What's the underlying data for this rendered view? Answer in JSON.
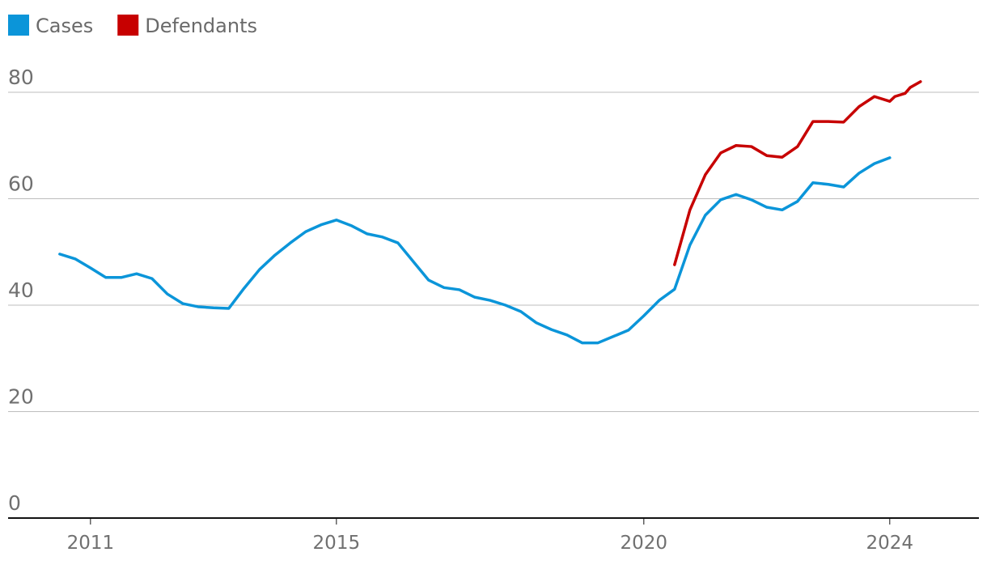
{
  "chart_data": {
    "type": "line",
    "series": [
      {
        "name": "Cases",
        "color": "#0b95d9",
        "x": [
          2010.5,
          2010.75,
          2011,
          2011.25,
          2011.5,
          2011.75,
          2012,
          2012.25,
          2012.5,
          2012.75,
          2013,
          2013.25,
          2013.5,
          2013.75,
          2014,
          2014.25,
          2014.5,
          2014.75,
          2015,
          2015.25,
          2015.5,
          2015.75,
          2016,
          2016.25,
          2016.5,
          2016.75,
          2017,
          2017.25,
          2017.5,
          2017.75,
          2018,
          2018.25,
          2018.5,
          2018.75,
          2019,
          2019.25,
          2019.5,
          2019.75,
          2020,
          2020.25,
          2020.5,
          2020.75,
          2021,
          2021.25,
          2021.5,
          2021.75,
          2022,
          2022.25,
          2022.5,
          2022.75,
          2023,
          2023.25,
          2023.5,
          2023.75,
          2024
        ],
        "values": [
          49.6,
          48.7,
          47.0,
          45.2,
          45.2,
          45.9,
          45.0,
          42.1,
          40.3,
          39.7,
          39.5,
          39.4,
          43.2,
          46.7,
          49.4,
          51.7,
          53.8,
          55.1,
          56.0,
          54.9,
          53.4,
          52.8,
          51.7,
          48.2,
          44.7,
          43.3,
          42.9,
          41.5,
          40.9,
          40.0,
          38.8,
          36.7,
          35.4,
          34.4,
          32.9,
          32.9,
          34.1,
          35.3,
          38.0,
          40.9,
          43.0,
          51.3,
          56.9,
          59.8,
          60.8,
          59.8,
          58.4,
          57.9,
          59.5,
          63.0,
          62.7,
          62.2,
          64.8,
          66.6,
          67.7
        ]
      },
      {
        "name": "Defendants",
        "color": "#c70000",
        "x": [
          2020.5,
          2020.75,
          2021,
          2021.25,
          2021.5,
          2021.75,
          2022,
          2022.25,
          2022.5,
          2022.75,
          2023,
          2023.25,
          2023.5,
          2023.75,
          2024,
          2024.083,
          2024.25,
          2024.333,
          2024.5
        ],
        "values": [
          47.6,
          57.9,
          64.5,
          68.6,
          70.0,
          69.8,
          68.1,
          67.8,
          69.8,
          74.5,
          74.5,
          74.4,
          77.3,
          79.2,
          78.3,
          79.2,
          79.8,
          80.9,
          82.0
        ]
      }
    ],
    "xlim": [
      2009.66,
      2025.45
    ],
    "xticks": [
      2011,
      2015,
      2020,
      2024
    ],
    "ylim": [
      0,
      80
    ],
    "yticks": [
      0,
      20,
      40,
      60,
      80
    ],
    "grid": true
  }
}
